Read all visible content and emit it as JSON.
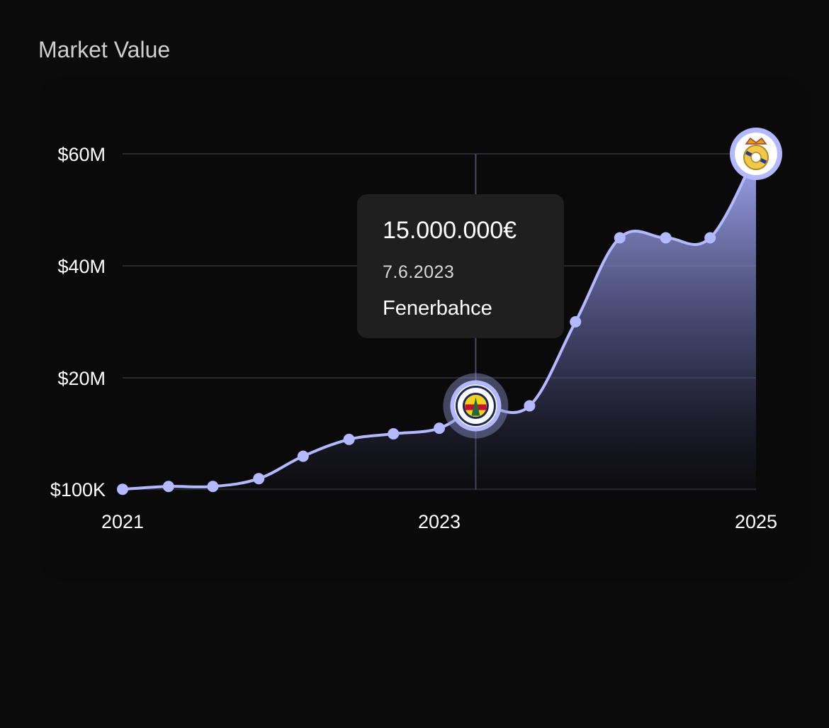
{
  "header": {
    "title": "Market Value"
  },
  "chart_data": {
    "type": "area",
    "title": "",
    "xlabel": "",
    "ylabel": "",
    "x_ticks": [
      {
        "year": 2021,
        "label": "2021"
      },
      {
        "year": 2023,
        "label": "2023"
      },
      {
        "year": 2025,
        "label": "2025"
      }
    ],
    "y_ticks": [
      {
        "value": 0.1,
        "label": "$100K"
      },
      {
        "value": 20,
        "label": "$20M"
      },
      {
        "value": 40,
        "label": "$40M"
      },
      {
        "value": 60,
        "label": "$60M"
      }
    ],
    "xlim": [
      2021,
      2025
    ],
    "ylim": [
      0,
      60
    ],
    "grid": true,
    "series": [
      {
        "values_unit": "millions",
        "points": [
          {
            "x": 2021.0,
            "y": 0.1
          },
          {
            "x": 2021.29,
            "y": 0.6
          },
          {
            "x": 2021.57,
            "y": 0.6
          },
          {
            "x": 2021.86,
            "y": 2.0
          },
          {
            "x": 2022.14,
            "y": 6.0
          },
          {
            "x": 2022.43,
            "y": 9.0
          },
          {
            "x": 2022.71,
            "y": 10.0
          },
          {
            "x": 2023.0,
            "y": 11.0
          },
          {
            "x": 2023.23,
            "y": 15.0
          },
          {
            "x": 2023.29,
            "y": 15.0
          },
          {
            "x": 2023.57,
            "y": 15.0
          },
          {
            "x": 2023.86,
            "y": 30.0
          },
          {
            "x": 2024.14,
            "y": 45.0
          },
          {
            "x": 2024.43,
            "y": 45.0
          },
          {
            "x": 2024.71,
            "y": 45.0
          },
          {
            "x": 2025.0,
            "y": 60.0
          }
        ]
      }
    ],
    "colors": {
      "line": "#b3b8ff",
      "grid": "#2a2a2e",
      "crosshair": "#4a4c63"
    },
    "markers": [
      {
        "x": 2023.23,
        "y": 15.0,
        "icon": "fenerbahce-crest-icon"
      },
      {
        "x": 2025.0,
        "y": 60.0,
        "icon": "real-madrid-crest-icon"
      }
    ],
    "tooltip": {
      "value": "15.000.000€",
      "date": "7.6.2023",
      "club": "Fenerbahce"
    }
  }
}
